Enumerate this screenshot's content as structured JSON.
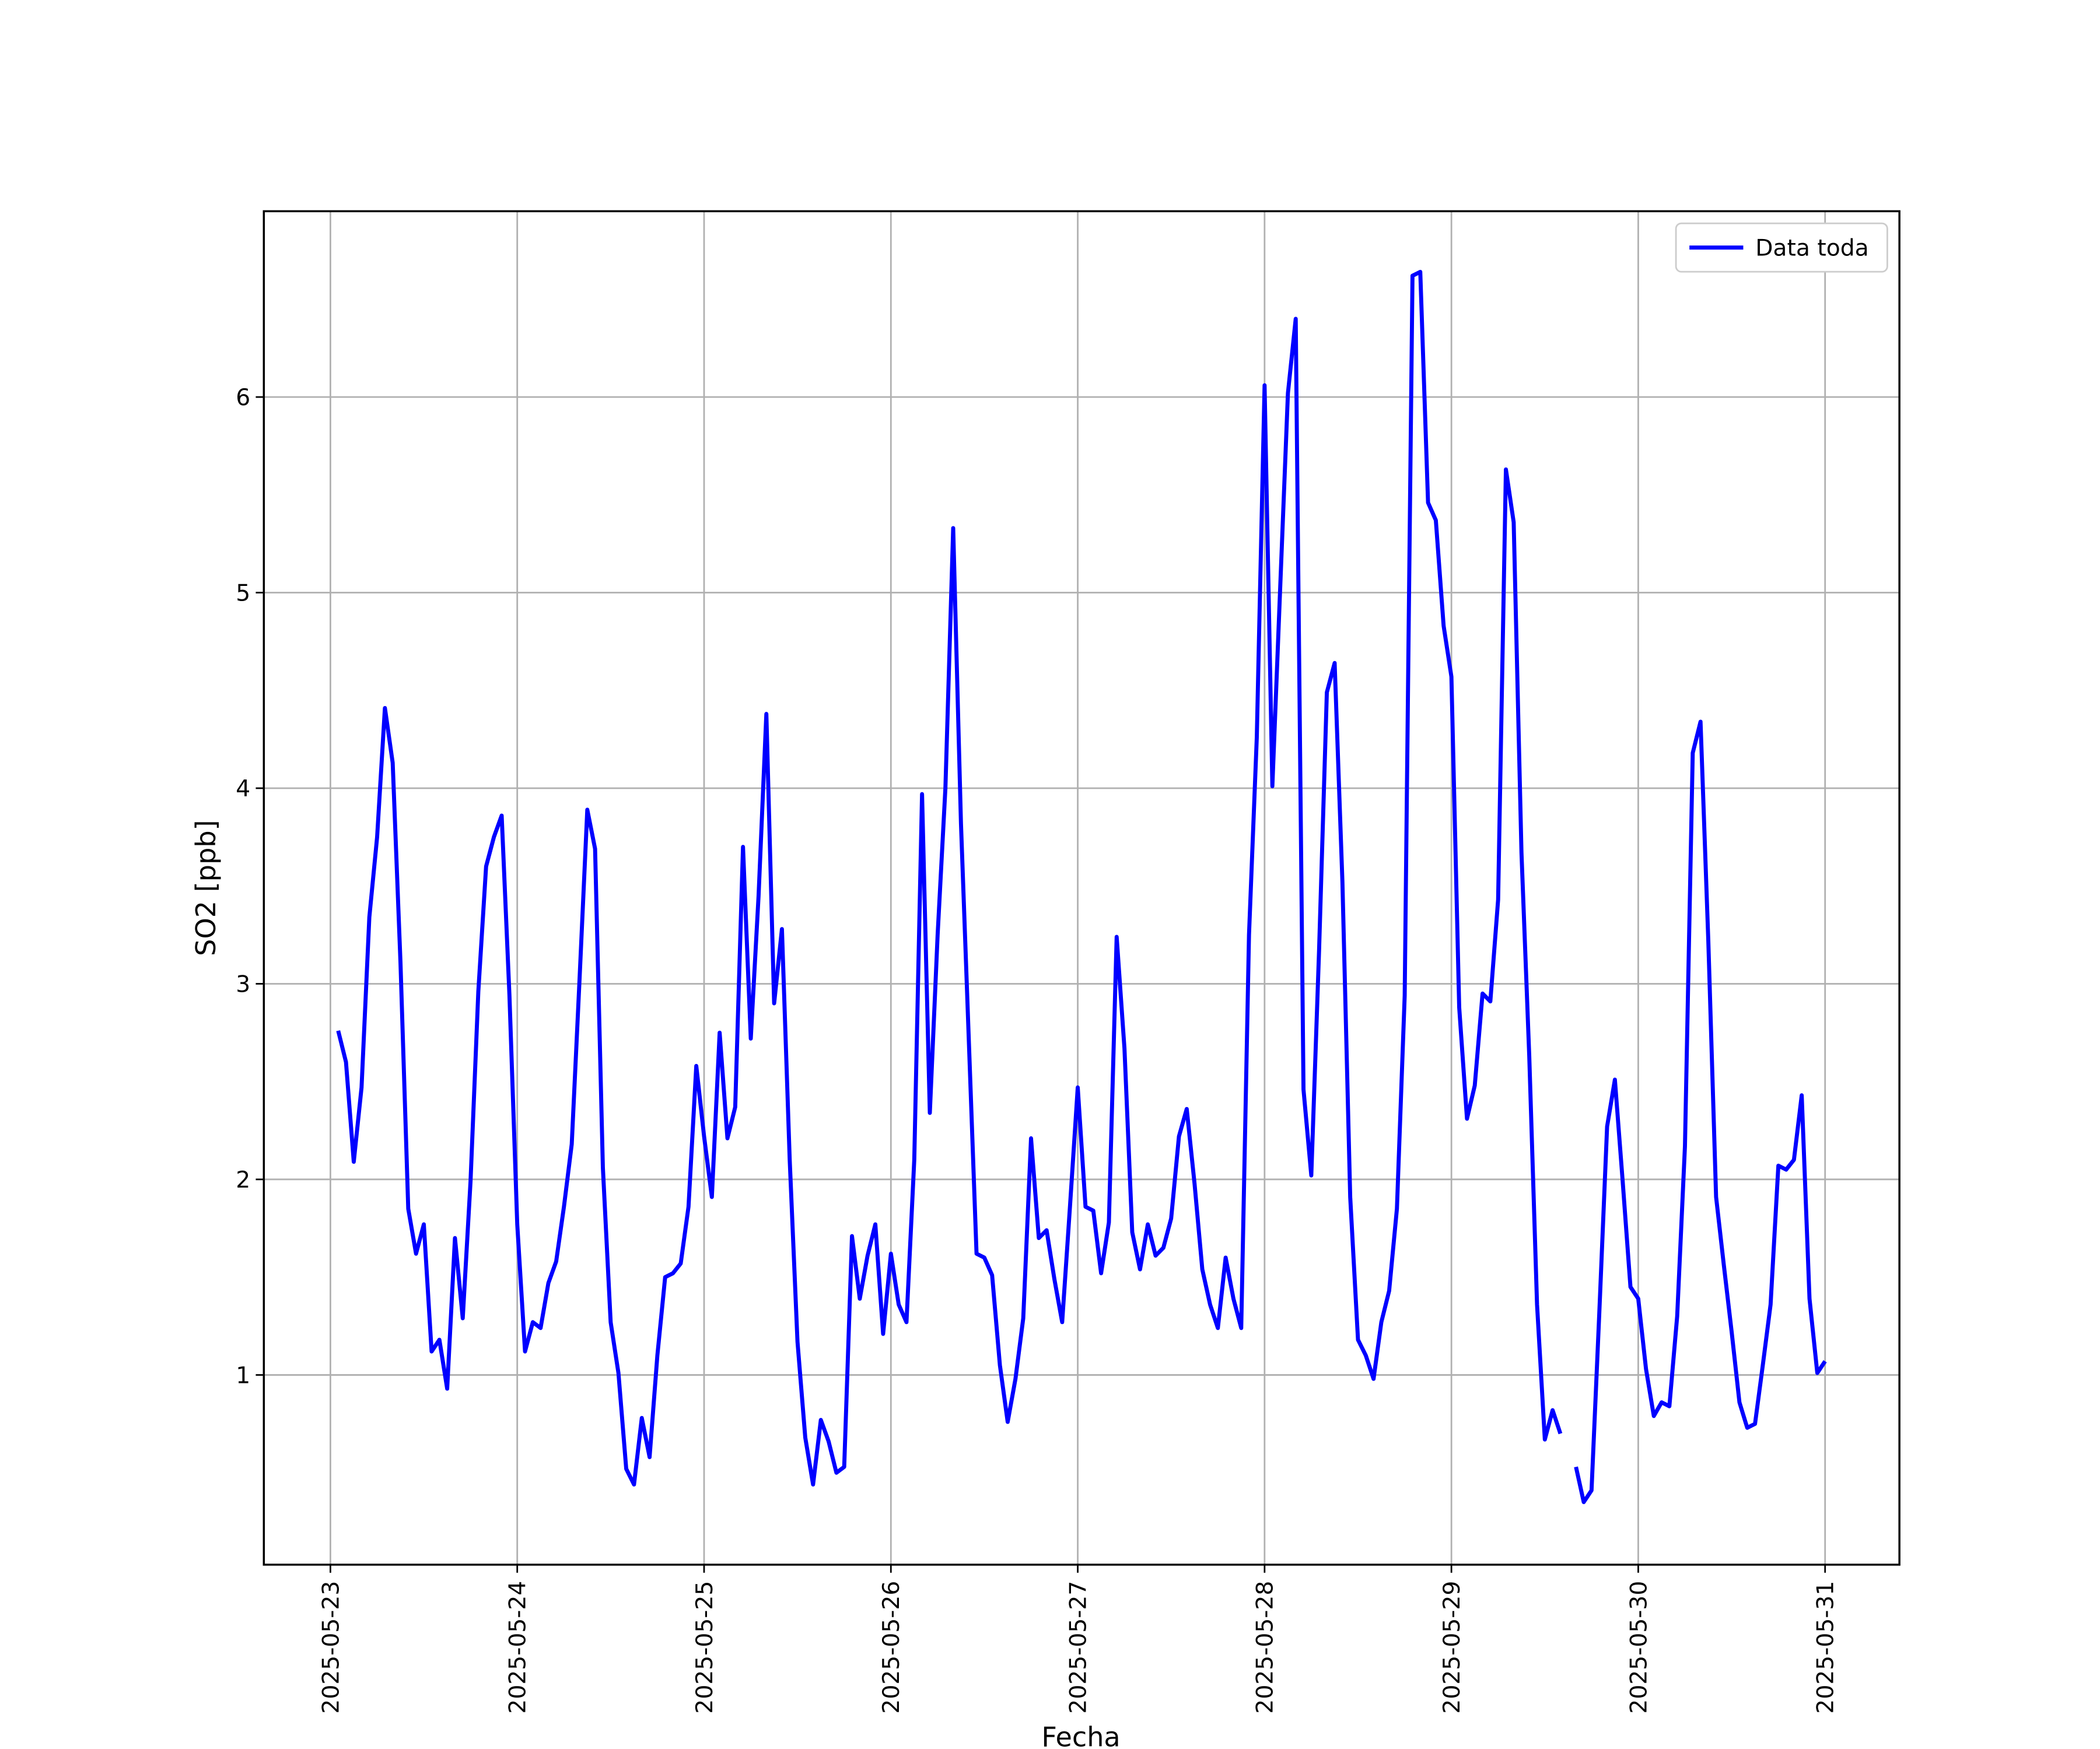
{
  "chart_data": {
    "type": "line",
    "xlabel": "Fecha",
    "ylabel": "SO2 [ppb]",
    "x": [
      "2025-05-23 01:00",
      "2025-05-23 02:00",
      "2025-05-23 03:00",
      "2025-05-23 04:00",
      "2025-05-23 05:00",
      "2025-05-23 06:00",
      "2025-05-23 07:00",
      "2025-05-23 08:00",
      "2025-05-23 09:00",
      "2025-05-23 10:00",
      "2025-05-23 11:00",
      "2025-05-23 12:00",
      "2025-05-23 13:00",
      "2025-05-23 14:00",
      "2025-05-23 15:00",
      "2025-05-23 16:00",
      "2025-05-23 17:00",
      "2025-05-23 18:00",
      "2025-05-23 19:00",
      "2025-05-23 20:00",
      "2025-05-23 21:00",
      "2025-05-23 22:00",
      "2025-05-23 23:00",
      "2025-05-24 00:00",
      "2025-05-24 01:00",
      "2025-05-24 02:00",
      "2025-05-24 03:00",
      "2025-05-24 04:00",
      "2025-05-24 05:00",
      "2025-05-24 06:00",
      "2025-05-24 07:00",
      "2025-05-24 08:00",
      "2025-05-24 09:00",
      "2025-05-24 10:00",
      "2025-05-24 11:00",
      "2025-05-24 12:00",
      "2025-05-24 13:00",
      "2025-05-24 14:00",
      "2025-05-24 15:00",
      "2025-05-24 16:00",
      "2025-05-24 17:00",
      "2025-05-24 18:00",
      "2025-05-24 19:00",
      "2025-05-24 20:00",
      "2025-05-24 21:00",
      "2025-05-24 22:00",
      "2025-05-24 23:00",
      "2025-05-25 00:00",
      "2025-05-25 01:00",
      "2025-05-25 02:00",
      "2025-05-25 03:00",
      "2025-05-25 04:00",
      "2025-05-25 05:00",
      "2025-05-25 06:00",
      "2025-05-25 07:00",
      "2025-05-25 08:00",
      "2025-05-25 09:00",
      "2025-05-25 10:00",
      "2025-05-25 11:00",
      "2025-05-25 12:00",
      "2025-05-25 13:00",
      "2025-05-25 14:00",
      "2025-05-25 15:00",
      "2025-05-25 16:00",
      "2025-05-25 17:00",
      "2025-05-25 18:00",
      "2025-05-25 19:00",
      "2025-05-25 20:00",
      "2025-05-25 21:00",
      "2025-05-25 22:00",
      "2025-05-25 23:00",
      "2025-05-26 00:00",
      "2025-05-26 01:00",
      "2025-05-26 02:00",
      "2025-05-26 03:00",
      "2025-05-26 04:00",
      "2025-05-26 05:00",
      "2025-05-26 06:00",
      "2025-05-26 07:00",
      "2025-05-26 08:00",
      "2025-05-26 09:00",
      "2025-05-26 10:00",
      "2025-05-26 11:00",
      "2025-05-26 12:00",
      "2025-05-26 13:00",
      "2025-05-26 14:00",
      "2025-05-26 15:00",
      "2025-05-26 16:00",
      "2025-05-26 17:00",
      "2025-05-26 18:00",
      "2025-05-26 19:00",
      "2025-05-26 20:00",
      "2025-05-26 21:00",
      "2025-05-26 22:00",
      "2025-05-26 23:00",
      "2025-05-27 00:00",
      "2025-05-27 01:00",
      "2025-05-27 02:00",
      "2025-05-27 03:00",
      "2025-05-27 04:00",
      "2025-05-27 05:00",
      "2025-05-27 06:00",
      "2025-05-27 07:00",
      "2025-05-27 08:00",
      "2025-05-27 09:00",
      "2025-05-27 10:00",
      "2025-05-27 11:00",
      "2025-05-27 12:00",
      "2025-05-27 13:00",
      "2025-05-27 14:00",
      "2025-05-27 15:00",
      "2025-05-27 16:00",
      "2025-05-27 17:00",
      "2025-05-27 18:00",
      "2025-05-27 19:00",
      "2025-05-27 20:00",
      "2025-05-27 21:00",
      "2025-05-27 22:00",
      "2025-05-27 23:00",
      "2025-05-28 00:00",
      "2025-05-28 01:00",
      "2025-05-28 02:00",
      "2025-05-28 03:00",
      "2025-05-28 04:00",
      "2025-05-28 05:00",
      "2025-05-28 06:00",
      "2025-05-28 07:00",
      "2025-05-28 08:00",
      "2025-05-28 09:00",
      "2025-05-28 10:00",
      "2025-05-28 11:00",
      "2025-05-28 12:00",
      "2025-05-28 13:00",
      "2025-05-28 14:00",
      "2025-05-28 15:00",
      "2025-05-28 16:00",
      "2025-05-28 17:00",
      "2025-05-28 18:00",
      "2025-05-28 19:00",
      "2025-05-28 20:00",
      "2025-05-28 21:00",
      "2025-05-28 22:00",
      "2025-05-28 23:00",
      "2025-05-29 00:00",
      "2025-05-29 01:00",
      "2025-05-29 02:00",
      "2025-05-29 03:00",
      "2025-05-29 04:00",
      "2025-05-29 05:00",
      "2025-05-29 06:00",
      "2025-05-29 07:00",
      "2025-05-29 08:00",
      "2025-05-29 09:00",
      "2025-05-29 10:00",
      "2025-05-29 11:00",
      "2025-05-29 12:00",
      "2025-05-29 13:00",
      "2025-05-29 14:00",
      "2025-05-29 15:00",
      "2025-05-29 16:00",
      "2025-05-29 17:00",
      "2025-05-29 18:00",
      "2025-05-29 19:00",
      "2025-05-29 20:00",
      "2025-05-29 21:00",
      "2025-05-29 22:00",
      "2025-05-29 23:00",
      "2025-05-30 00:00",
      "2025-05-30 01:00",
      "2025-05-30 02:00",
      "2025-05-30 03:00",
      "2025-05-30 04:00",
      "2025-05-30 05:00",
      "2025-05-30 06:00",
      "2025-05-30 07:00",
      "2025-05-30 08:00",
      "2025-05-30 09:00",
      "2025-05-30 10:00",
      "2025-05-30 11:00",
      "2025-05-30 12:00",
      "2025-05-30 13:00",
      "2025-05-30 14:00",
      "2025-05-30 15:00",
      "2025-05-30 16:00",
      "2025-05-30 17:00",
      "2025-05-30 18:00",
      "2025-05-30 19:00",
      "2025-05-30 20:00",
      "2025-05-30 21:00",
      "2025-05-30 22:00",
      "2025-05-30 23:00",
      "2025-05-31 00:00"
    ],
    "series": [
      {
        "name": "Data toda",
        "color": "#0000ff",
        "values": [
          2.76,
          2.6,
          2.09,
          2.47,
          3.34,
          3.75,
          4.41,
          4.13,
          3.11,
          1.85,
          1.62,
          1.77,
          1.12,
          1.18,
          0.93,
          1.7,
          1.29,
          1.99,
          2.96,
          3.6,
          3.75,
          3.86,
          2.94,
          1.77,
          1.12,
          1.27,
          1.24,
          1.47,
          1.58,
          1.86,
          2.18,
          3.02,
          3.89,
          3.69,
          2.06,
          1.27,
          1.01,
          0.52,
          0.44,
          0.78,
          0.58,
          1.1,
          1.5,
          1.52,
          1.57,
          1.86,
          2.58,
          2.22,
          1.91,
          2.75,
          2.21,
          2.37,
          3.7,
          2.72,
          3.45,
          4.38,
          2.9,
          3.28,
          2.1,
          1.17,
          0.68,
          0.44,
          0.77,
          0.66,
          0.5,
          0.53,
          1.71,
          1.39,
          1.61,
          1.77,
          1.21,
          1.62,
          1.36,
          1.27,
          2.1,
          3.97,
          2.34,
          3.25,
          4.0,
          5.33,
          3.82,
          2.72,
          1.62,
          1.6,
          1.51,
          1.05,
          0.76,
          0.98,
          1.29,
          2.21,
          1.7,
          1.74,
          1.49,
          1.27,
          1.86,
          2.47,
          1.86,
          1.84,
          1.52,
          1.78,
          3.24,
          2.67,
          1.73,
          1.54,
          1.77,
          1.61,
          1.65,
          1.8,
          2.22,
          2.36,
          1.98,
          1.54,
          1.36,
          1.24,
          1.6,
          1.39,
          1.24,
          3.25,
          4.26,
          6.06,
          4.01,
          5.02,
          6.02,
          6.4,
          2.46,
          2.02,
          3.17,
          4.49,
          4.64,
          3.52,
          1.91,
          1.18,
          1.1,
          0.98,
          1.27,
          1.43,
          1.85,
          2.94,
          6.62,
          6.64,
          5.46,
          5.37,
          4.83,
          4.57,
          2.88,
          2.31,
          2.48,
          2.95,
          2.91,
          3.43,
          5.63,
          5.36,
          3.67,
          2.63,
          1.36,
          0.67,
          0.82,
          0.7,
          null,
          0.53,
          0.35,
          0.41,
          1.32,
          2.27,
          2.51,
          1.99,
          1.45,
          1.39,
          1.03,
          0.79,
          0.86,
          0.84,
          1.3,
          2.17,
          4.18,
          4.34,
          3.22,
          1.91,
          1.56,
          1.22,
          0.86,
          0.73,
          0.75,
          1.05,
          1.36,
          2.07,
          2.05,
          2.1,
          2.43,
          1.39,
          1.01,
          1.07
        ]
      }
    ],
    "xlim": [
      "2025-05-22 15:27",
      "2025-05-31 09:33"
    ],
    "xticks": [
      "2025-05-23",
      "2025-05-24",
      "2025-05-25",
      "2025-05-26",
      "2025-05-27",
      "2025-05-28",
      "2025-05-29",
      "2025-05-30",
      "2025-05-31"
    ],
    "ylim": [
      0.03,
      6.95
    ],
    "yticks": [
      1,
      2,
      3,
      4,
      5,
      6
    ],
    "grid": true,
    "legend": "upper right"
  }
}
